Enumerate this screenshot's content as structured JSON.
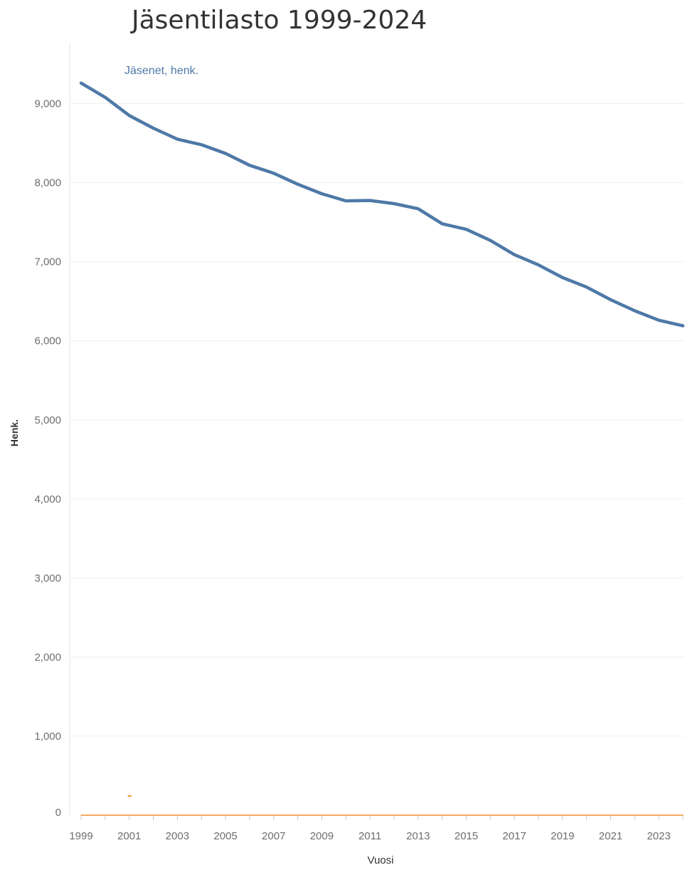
{
  "chart_data": {
    "type": "line",
    "title": "Jäsentilasto 1999-2024",
    "xlabel": "Vuosi",
    "ylabel": "Henk.",
    "x": [
      1999,
      2000,
      2001,
      2002,
      2003,
      2004,
      2005,
      2006,
      2007,
      2008,
      2009,
      2010,
      2011,
      2012,
      2013,
      2014,
      2015,
      2016,
      2017,
      2018,
      2019,
      2020,
      2021,
      2022,
      2023,
      2024
    ],
    "x_tick_labels": [
      "1999",
      "2001",
      "2003",
      "2005",
      "2007",
      "2009",
      "2011",
      "2013",
      "2015",
      "2017",
      "2019",
      "2021",
      "2023"
    ],
    "y_tick_labels": [
      "0",
      "1,000",
      "2,000",
      "3,000",
      "4,000",
      "5,000",
      "6,000",
      "7,000",
      "8,000",
      "9,000"
    ],
    "ylim": [
      0,
      9500
    ],
    "grid": true,
    "series": [
      {
        "name": "Jäsenet, henk.",
        "color": "#4e79a7",
        "values": [
          9260,
          9080,
          8850,
          8690,
          8550,
          8480,
          8370,
          8220,
          8120,
          7980,
          7860,
          7770,
          7775,
          7735,
          7670,
          7480,
          7410,
          7270,
          7090,
          6960,
          6800,
          6680,
          6520,
          6380,
          6260,
          6190
        ]
      },
      {
        "color": "#f28e2b",
        "values": [
          0,
          0,
          0,
          0,
          0,
          0,
          0,
          0,
          0,
          0,
          0,
          0,
          0,
          0,
          0,
          0,
          0,
          0,
          0,
          0,
          0,
          0,
          0,
          0,
          0,
          0
        ]
      }
    ]
  }
}
